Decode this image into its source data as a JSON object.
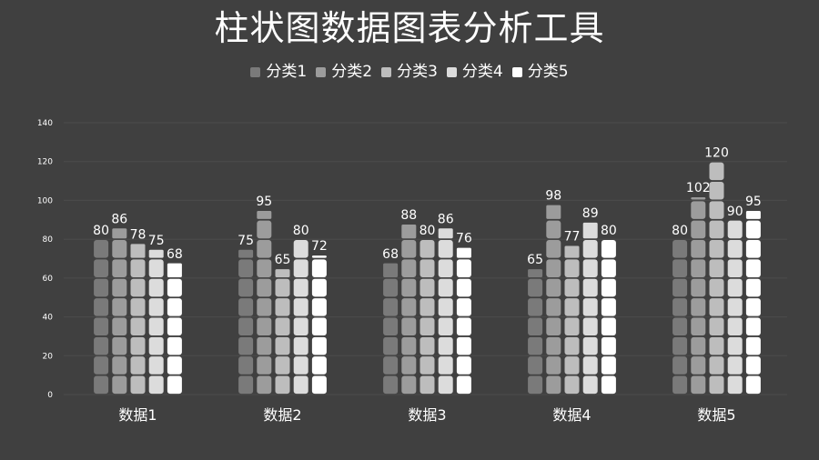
{
  "chart_data": {
    "type": "bar",
    "title": "柱状图数据图表分析工具",
    "categories": [
      "数据1",
      "数据2",
      "数据3",
      "数据4",
      "数据5"
    ],
    "series": [
      {
        "name": "分类1",
        "color": "#7a7a7a",
        "values": [
          80,
          75,
          68,
          65,
          80
        ]
      },
      {
        "name": "分类2",
        "color": "#9c9c9c",
        "values": [
          86,
          95,
          88,
          98,
          102
        ]
      },
      {
        "name": "分类3",
        "color": "#bdbdbd",
        "values": [
          78,
          65,
          80,
          77,
          120
        ]
      },
      {
        "name": "分类4",
        "color": "#dcdcdc",
        "values": [
          75,
          80,
          86,
          89,
          90
        ]
      },
      {
        "name": "分类5",
        "color": "#ffffff",
        "values": [
          68,
          72,
          76,
          80,
          95
        ]
      }
    ],
    "ylim": [
      0,
      140
    ],
    "yticks": [
      "0",
      "20",
      "40",
      "60",
      "80",
      "100",
      "120",
      "140"
    ],
    "grid": true,
    "legend_position": "top"
  }
}
